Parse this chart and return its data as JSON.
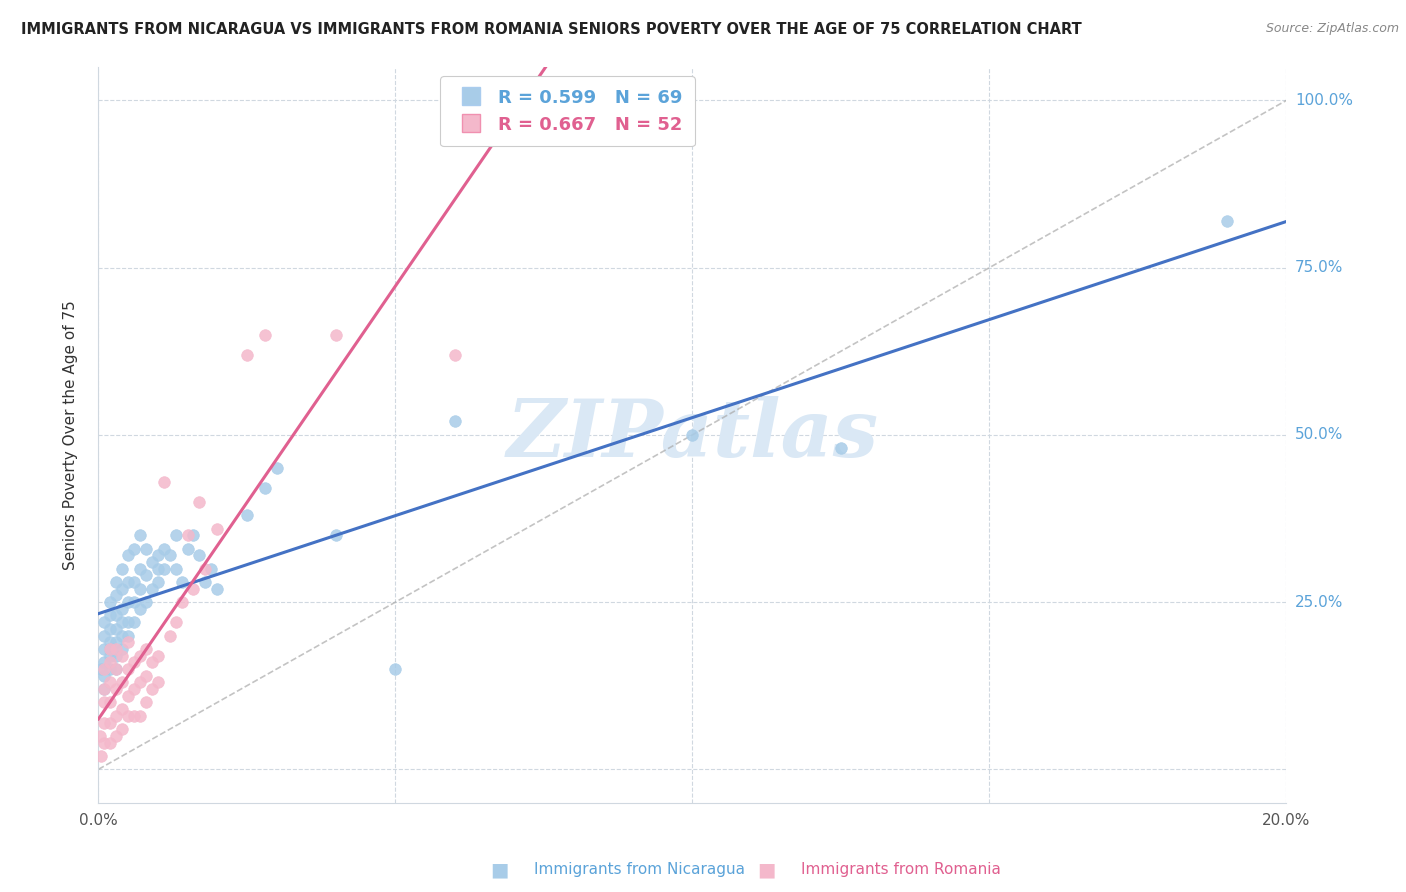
{
  "title": "IMMIGRANTS FROM NICARAGUA VS IMMIGRANTS FROM ROMANIA SENIORS POVERTY OVER THE AGE OF 75 CORRELATION CHART",
  "source": "Source: ZipAtlas.com",
  "ylabel": "Seniors Poverty Over the Age of 75",
  "nicaragua_R": 0.599,
  "nicaragua_N": 69,
  "romania_R": 0.667,
  "romania_N": 52,
  "blue_scatter_color": "#a8cce8",
  "pink_scatter_color": "#f4b8cb",
  "blue_line_color": "#4472c4",
  "pink_line_color": "#e06090",
  "watermark": "ZIPatlas",
  "watermark_color": "#dae8f5",
  "xlim": [
    0.0,
    0.2
  ],
  "ylim": [
    -0.05,
    1.05
  ],
  "nicaragua_x": [
    0.0005,
    0.001,
    0.001,
    0.001,
    0.001,
    0.001,
    0.001,
    0.002,
    0.002,
    0.002,
    0.002,
    0.002,
    0.002,
    0.002,
    0.003,
    0.003,
    0.003,
    0.003,
    0.003,
    0.003,
    0.003,
    0.004,
    0.004,
    0.004,
    0.004,
    0.004,
    0.004,
    0.005,
    0.005,
    0.005,
    0.005,
    0.005,
    0.006,
    0.006,
    0.006,
    0.006,
    0.007,
    0.007,
    0.007,
    0.007,
    0.008,
    0.008,
    0.008,
    0.009,
    0.009,
    0.01,
    0.01,
    0.01,
    0.011,
    0.011,
    0.012,
    0.013,
    0.013,
    0.014,
    0.015,
    0.016,
    0.017,
    0.018,
    0.019,
    0.02,
    0.025,
    0.028,
    0.03,
    0.04,
    0.05,
    0.06,
    0.1,
    0.125,
    0.19
  ],
  "nicaragua_y": [
    0.15,
    0.12,
    0.14,
    0.16,
    0.18,
    0.2,
    0.22,
    0.15,
    0.17,
    0.19,
    0.21,
    0.23,
    0.25,
    0.18,
    0.15,
    0.17,
    0.19,
    0.21,
    0.23,
    0.26,
    0.28,
    0.18,
    0.2,
    0.22,
    0.24,
    0.27,
    0.3,
    0.2,
    0.22,
    0.25,
    0.28,
    0.32,
    0.22,
    0.25,
    0.28,
    0.33,
    0.24,
    0.27,
    0.3,
    0.35,
    0.25,
    0.29,
    0.33,
    0.27,
    0.31,
    0.28,
    0.3,
    0.32,
    0.3,
    0.33,
    0.32,
    0.3,
    0.35,
    0.28,
    0.33,
    0.35,
    0.32,
    0.28,
    0.3,
    0.27,
    0.38,
    0.42,
    0.45,
    0.35,
    0.15,
    0.52,
    0.5,
    0.48,
    0.82
  ],
  "romania_x": [
    0.0003,
    0.0005,
    0.001,
    0.001,
    0.001,
    0.001,
    0.001,
    0.002,
    0.002,
    0.002,
    0.002,
    0.002,
    0.002,
    0.003,
    0.003,
    0.003,
    0.003,
    0.003,
    0.004,
    0.004,
    0.004,
    0.004,
    0.005,
    0.005,
    0.005,
    0.005,
    0.006,
    0.006,
    0.006,
    0.007,
    0.007,
    0.007,
    0.008,
    0.008,
    0.008,
    0.009,
    0.009,
    0.01,
    0.01,
    0.011,
    0.012,
    0.013,
    0.014,
    0.015,
    0.016,
    0.017,
    0.018,
    0.02,
    0.025,
    0.028,
    0.04,
    0.06
  ],
  "romania_y": [
    0.05,
    0.02,
    0.04,
    0.07,
    0.1,
    0.12,
    0.15,
    0.04,
    0.07,
    0.1,
    0.13,
    0.16,
    0.18,
    0.05,
    0.08,
    0.12,
    0.15,
    0.18,
    0.06,
    0.09,
    0.13,
    0.17,
    0.08,
    0.11,
    0.15,
    0.19,
    0.08,
    0.12,
    0.16,
    0.08,
    0.13,
    0.17,
    0.1,
    0.14,
    0.18,
    0.12,
    0.16,
    0.13,
    0.17,
    0.43,
    0.2,
    0.22,
    0.25,
    0.35,
    0.27,
    0.4,
    0.3,
    0.36,
    0.62,
    0.65,
    0.65,
    0.62
  ],
  "xticks": [
    0.0,
    0.05,
    0.1,
    0.15,
    0.2
  ],
  "xticklabels": [
    "0.0%",
    "",
    "",
    "",
    "20.0%"
  ],
  "yticks": [
    0.0,
    0.25,
    0.5,
    0.75,
    1.0
  ],
  "right_yticklabels": [
    "",
    "25.0%",
    "50.0%",
    "75.0%",
    "100.0%"
  ],
  "title_color": "#222222",
  "source_color": "#888888",
  "axis_label_color": "#333333",
  "right_tick_color": "#5ba3d9",
  "grid_color": "#d0d8e0",
  "legend_text_blue": "#5ba3d9",
  "legend_text_pink": "#e06090"
}
